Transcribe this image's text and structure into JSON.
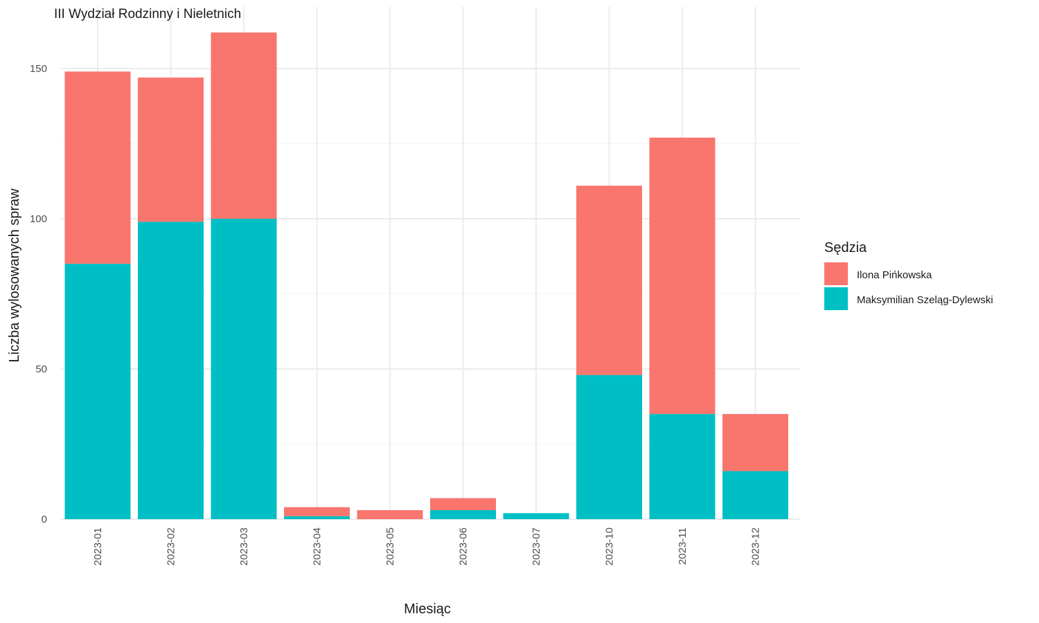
{
  "chart_data": {
    "type": "bar",
    "stacked": true,
    "title": "III Wydział Rodzinny i Nieletnich",
    "xlabel": "Miesiąc",
    "ylabel": "Liczba wylosowanych spraw",
    "ylim": [
      0,
      170
    ],
    "yticks": [
      0,
      50,
      100,
      150
    ],
    "categories": [
      "2023-01",
      "2023-02",
      "2023-03",
      "2023-04",
      "2023-05",
      "2023-06",
      "2023-07",
      "2023-10",
      "2023-11",
      "2023-12"
    ],
    "series": [
      {
        "name": "Maksymilian Szeląg-Dylewski",
        "color": "#00BFC4",
        "values": [
          85,
          99,
          100,
          1,
          0,
          3,
          2,
          48,
          35,
          16
        ]
      },
      {
        "name": "Ilona Pińkowska",
        "color": "#F8766D",
        "values": [
          64,
          48,
          62,
          3,
          3,
          4,
          0,
          63,
          92,
          19
        ]
      }
    ],
    "legend": {
      "title": "Sędzia",
      "position": "right",
      "entries": [
        {
          "label": "Ilona Pińkowska",
          "color": "#F8766D"
        },
        {
          "label": "Maksymilian Szeląg-Dylewski",
          "color": "#00BFC4"
        }
      ]
    },
    "grid": true
  }
}
